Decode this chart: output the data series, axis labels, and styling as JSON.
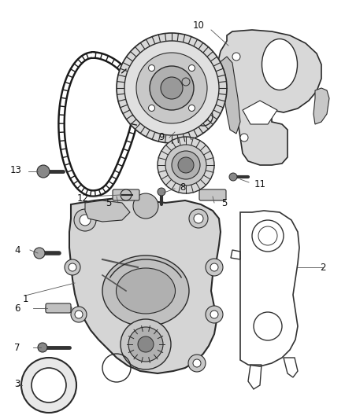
{
  "bg_color": "#ffffff",
  "fig_width": 4.38,
  "fig_height": 5.33,
  "dpi": 100,
  "line_color": "#2a2a2a",
  "label_color": "#1a1a1a",
  "cover_face": "#e0e0e0",
  "cover_edge": "#2a2a2a",
  "chain_color": "#1a1a1a",
  "part_gray": "#c8c8c8",
  "light_gray": "#d8d8d8",
  "mid_gray": "#b0b0b0",
  "dark_gray": "#888888"
}
